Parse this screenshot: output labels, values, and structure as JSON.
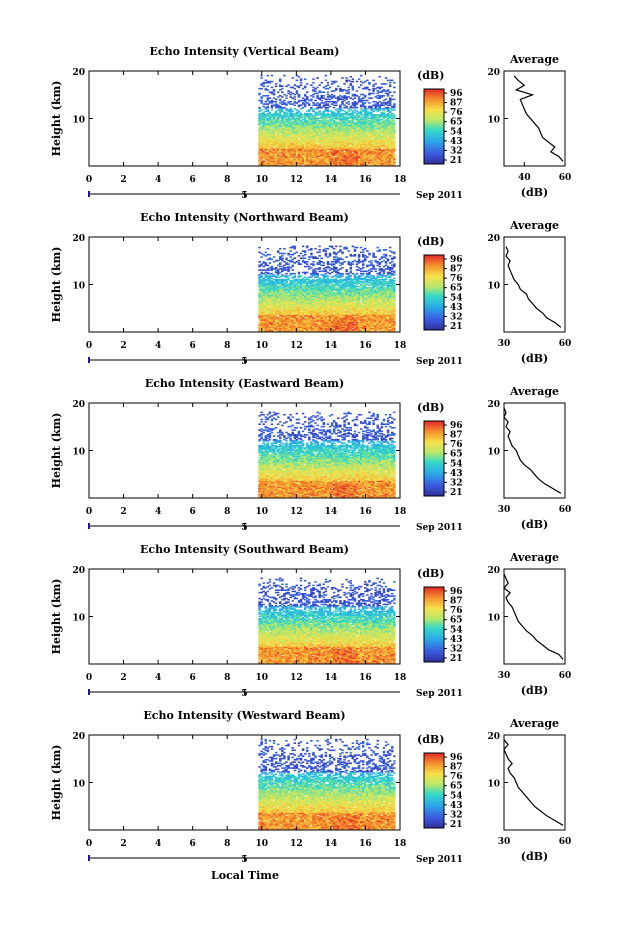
{
  "figure": {
    "date_label": "Sep 2011",
    "xlabel": "Local Time",
    "date_marker": "5",
    "colorbar_unit": "(dB)"
  },
  "chart_data": [
    {
      "type": "heatmap",
      "title": "Echo Intensity (Vertical Beam)",
      "xlabel": "",
      "ylabel": "Height (km)",
      "xlim": [
        0,
        18
      ],
      "ylim": [
        0,
        20
      ],
      "x_ticks": [
        0,
        2,
        4,
        6,
        8,
        10,
        12,
        14,
        16,
        18
      ],
      "y_ticks": [
        10,
        20
      ],
      "data_x_range": [
        9.8,
        17.6
      ],
      "data_top_height": 19,
      "colorbar": {
        "label": "(dB)",
        "ticks": [
          96,
          87,
          76,
          65,
          54,
          43,
          32,
          21
        ]
      },
      "average_profile": {
        "title": "Average",
        "xlabel": "(dB)",
        "xlim": [
          30,
          60
        ],
        "x_ticks": [
          40,
          60
        ],
        "ylim": [
          0,
          20
        ],
        "y_ticks": [
          10,
          20
        ],
        "height": [
          1,
          2,
          3,
          4,
          5,
          6,
          7,
          8,
          9,
          10,
          11,
          12,
          13,
          14,
          15,
          16,
          17,
          18,
          19
        ],
        "db": [
          59,
          57,
          53,
          55,
          52,
          49,
          48,
          47,
          45,
          43,
          41,
          40,
          39,
          38,
          44,
          36,
          40,
          37,
          35
        ]
      }
    },
    {
      "type": "heatmap",
      "title": "Echo Intensity (Northward Beam)",
      "xlabel": "",
      "ylabel": "Height (km)",
      "xlim": [
        0,
        18
      ],
      "ylim": [
        0,
        20
      ],
      "x_ticks": [
        0,
        2,
        4,
        6,
        8,
        10,
        12,
        14,
        16,
        18
      ],
      "y_ticks": [
        10,
        20
      ],
      "data_x_range": [
        9.8,
        17.6
      ],
      "data_top_height": 18,
      "colorbar": {
        "label": "(dB)",
        "ticks": [
          96,
          87,
          76,
          65,
          54,
          43,
          32,
          21
        ]
      },
      "average_profile": {
        "title": "Average",
        "xlabel": "(dB)",
        "xlim": [
          30,
          60
        ],
        "x_ticks": [
          30,
          60
        ],
        "ylim": [
          0,
          20
        ],
        "y_ticks": [
          10,
          20
        ],
        "height": [
          1,
          2,
          3,
          4,
          5,
          6,
          7,
          8,
          9,
          10,
          11,
          12,
          13,
          14,
          15,
          16,
          17,
          18
        ],
        "db": [
          58,
          55,
          51,
          49,
          46,
          44,
          42,
          41,
          38,
          37,
          35,
          34,
          33,
          32,
          33,
          31,
          32,
          31
        ]
      }
    },
    {
      "type": "heatmap",
      "title": "Echo Intensity (Eastward Beam)",
      "xlabel": "",
      "ylabel": "Height (km)",
      "xlim": [
        0,
        18
      ],
      "ylim": [
        0,
        20
      ],
      "x_ticks": [
        0,
        2,
        4,
        6,
        8,
        10,
        12,
        14,
        16,
        18
      ],
      "y_ticks": [
        10,
        20
      ],
      "data_x_range": [
        9.8,
        17.6
      ],
      "data_top_height": 18,
      "colorbar": {
        "label": "(dB)",
        "ticks": [
          96,
          87,
          76,
          65,
          54,
          43,
          32,
          21
        ]
      },
      "average_profile": {
        "title": "Average",
        "xlabel": "(dB)",
        "xlim": [
          30,
          60
        ],
        "x_ticks": [
          30,
          60
        ],
        "ylim": [
          0,
          20
        ],
        "y_ticks": [
          10,
          20
        ],
        "height": [
          1,
          2,
          3,
          4,
          5,
          6,
          7,
          8,
          9,
          10,
          11,
          12,
          13,
          14,
          15,
          16,
          17,
          18,
          19
        ],
        "db": [
          58,
          54,
          50,
          47,
          45,
          43,
          40,
          38,
          37,
          36,
          34,
          33,
          32,
          33,
          31,
          32,
          30,
          31,
          30
        ]
      }
    },
    {
      "type": "heatmap",
      "title": "Echo Intensity (Southward Beam)",
      "xlabel": "",
      "ylabel": "Height (km)",
      "xlim": [
        0,
        18
      ],
      "ylim": [
        0,
        20
      ],
      "x_ticks": [
        0,
        2,
        4,
        6,
        8,
        10,
        12,
        14,
        16,
        18
      ],
      "y_ticks": [
        10,
        20
      ],
      "data_x_range": [
        9.8,
        17.6
      ],
      "data_top_height": 18,
      "colorbar": {
        "label": "(dB)",
        "ticks": [
          96,
          87,
          76,
          65,
          54,
          43,
          32,
          21
        ]
      },
      "average_profile": {
        "title": "Average",
        "xlabel": "(dB)",
        "xlim": [
          30,
          60
        ],
        "x_ticks": [
          30,
          60
        ],
        "ylim": [
          0,
          20
        ],
        "y_ticks": [
          10,
          20
        ],
        "height": [
          1,
          2,
          3,
          4,
          5,
          6,
          7,
          8,
          9,
          10,
          11,
          12,
          13,
          14,
          15,
          16,
          17,
          18,
          19
        ],
        "db": [
          59,
          57,
          52,
          49,
          46,
          44,
          41,
          39,
          37,
          36,
          35,
          34,
          32,
          31,
          33,
          30,
          32,
          31,
          30
        ]
      }
    },
    {
      "type": "heatmap",
      "title": "Echo Intensity (Westward Beam)",
      "xlabel": "Local Time",
      "ylabel": "Height (km)",
      "xlim": [
        0,
        18
      ],
      "ylim": [
        0,
        20
      ],
      "x_ticks": [
        0,
        2,
        4,
        6,
        8,
        10,
        12,
        14,
        16,
        18
      ],
      "y_ticks": [
        10,
        20
      ],
      "data_x_range": [
        9.8,
        17.6
      ],
      "data_top_height": 19,
      "colorbar": {
        "label": "(dB)",
        "ticks": [
          96,
          87,
          76,
          65,
          54,
          43,
          32,
          21
        ]
      },
      "average_profile": {
        "title": "Average",
        "xlabel": "(dB)",
        "xlim": [
          30,
          60
        ],
        "x_ticks": [
          30,
          60
        ],
        "ylim": [
          0,
          20
        ],
        "y_ticks": [
          10,
          20
        ],
        "height": [
          1,
          2,
          3,
          4,
          5,
          6,
          7,
          8,
          9,
          10,
          11,
          12,
          13,
          14,
          15,
          16,
          17,
          18,
          19
        ],
        "db": [
          59,
          55,
          51,
          48,
          45,
          43,
          41,
          39,
          37,
          36,
          35,
          33,
          32,
          34,
          32,
          31,
          30,
          32,
          30
        ]
      }
    }
  ]
}
